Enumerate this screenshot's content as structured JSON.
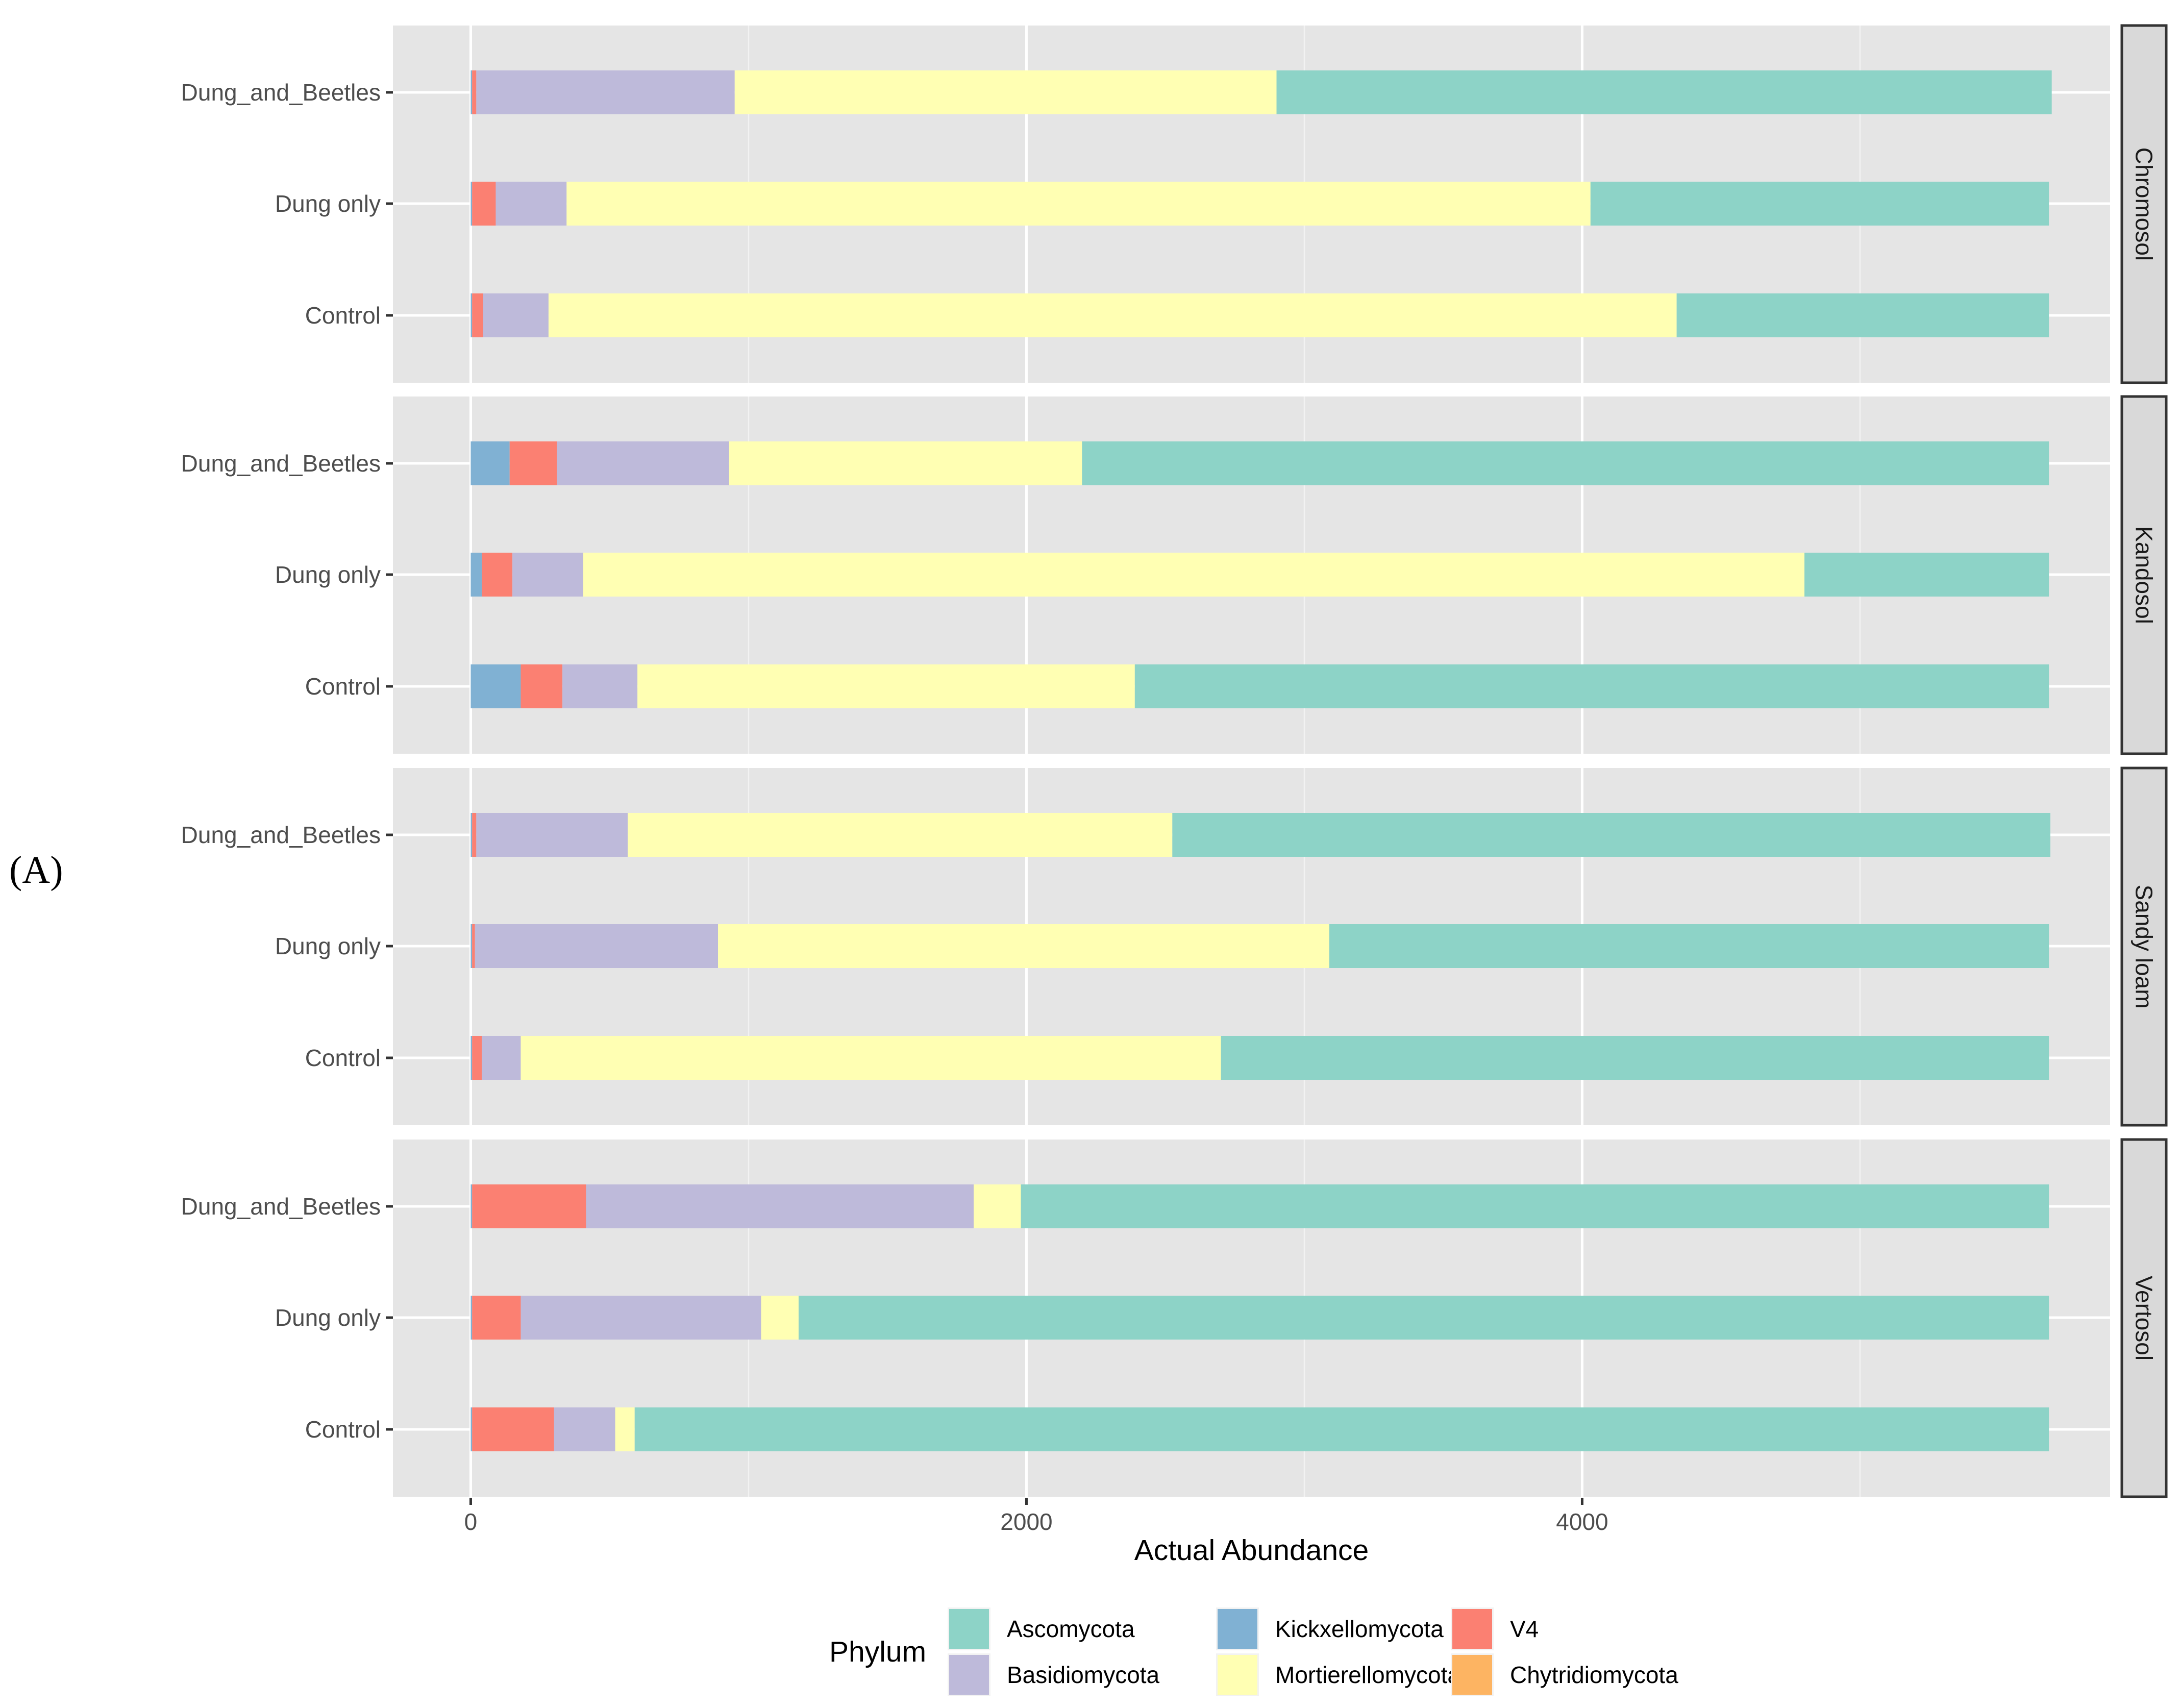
{
  "figure_label": "(A)",
  "chart_data": {
    "type": "bar",
    "orientation": "horizontal",
    "stacked": true,
    "xlabel": "Actual Abundance",
    "x_ticks": [
      0,
      2000,
      4000
    ],
    "xlim": [
      -280,
      5900
    ],
    "grid": true,
    "legend": {
      "title": "Phylum",
      "position": "bottom",
      "entries": [
        "Ascomycota",
        "Basidiomycota",
        "Kickxellomycota",
        "Mortierellomycota",
        "V4",
        "Chytridiomycota"
      ]
    },
    "colors": {
      "Ascomycota": "#8dd3c7",
      "Mortierellomycota": "#ffffb3",
      "Basidiomycota": "#bebada",
      "V4": "#fb8072",
      "Kickxellomycota": "#80b1d3",
      "Chytridiomycota": "#fdb462"
    },
    "stack_order": [
      "Chytridiomycota",
      "Kickxellomycota",
      "V4",
      "Basidiomycota",
      "Mortierellomycota",
      "Ascomycota"
    ],
    "facets": [
      {
        "name": "Chromosol",
        "rows": [
          {
            "label": "Dung_and_Beetles",
            "values": {
              "Chytridiomycota": 0,
              "Kickxellomycota": 5,
              "V4": 15,
              "Basidiomycota": 930,
              "Mortierellomycota": 1950,
              "Ascomycota": 2790
            }
          },
          {
            "label": "Dung only",
            "values": {
              "Chytridiomycota": 0,
              "Kickxellomycota": 5,
              "V4": 85,
              "Basidiomycota": 255,
              "Mortierellomycota": 3685,
              "Ascomycota": 1650
            }
          },
          {
            "label": "Control",
            "values": {
              "Chytridiomycota": 0,
              "Kickxellomycota": 5,
              "V4": 40,
              "Basidiomycota": 235,
              "Mortierellomycota": 4060,
              "Ascomycota": 1340
            }
          }
        ]
      },
      {
        "name": "Kandosol",
        "rows": [
          {
            "label": "Dung_and_Beetles",
            "values": {
              "Chytridiomycota": 0,
              "Kickxellomycota": 140,
              "V4": 170,
              "Basidiomycota": 620,
              "Mortierellomycota": 1270,
              "Ascomycota": 3480
            }
          },
          {
            "label": "Dung only",
            "values": {
              "Chytridiomycota": 0,
              "Kickxellomycota": 40,
              "V4": 110,
              "Basidiomycota": 255,
              "Mortierellomycota": 4395,
              "Ascomycota": 880
            }
          },
          {
            "label": "Control",
            "values": {
              "Chytridiomycota": 0,
              "Kickxellomycota": 180,
              "V4": 150,
              "Basidiomycota": 270,
              "Mortierellomycota": 1790,
              "Ascomycota": 3290
            }
          }
        ]
      },
      {
        "name": "Sandy loam",
        "rows": [
          {
            "label": "Dung_and_Beetles",
            "values": {
              "Chytridiomycota": 0,
              "Kickxellomycota": 5,
              "V4": 15,
              "Basidiomycota": 545,
              "Mortierellomycota": 1960,
              "Ascomycota": 3160
            }
          },
          {
            "label": "Dung only",
            "values": {
              "Chytridiomycota": 0,
              "Kickxellomycota": 5,
              "V4": 10,
              "Basidiomycota": 875,
              "Mortierellomycota": 2200,
              "Ascomycota": 2590
            }
          },
          {
            "label": "Control",
            "values": {
              "Chytridiomycota": 0,
              "Kickxellomycota": 5,
              "V4": 35,
              "Basidiomycota": 140,
              "Mortierellomycota": 2520,
              "Ascomycota": 2980
            }
          }
        ]
      },
      {
        "name": "Vertosol",
        "rows": [
          {
            "label": "Dung_and_Beetles",
            "values": {
              "Chytridiomycota": 0,
              "Kickxellomycota": 5,
              "V4": 410,
              "Basidiomycota": 1395,
              "Mortierellomycota": 170,
              "Ascomycota": 3700
            }
          },
          {
            "label": "Dung only",
            "values": {
              "Chytridiomycota": 0,
              "Kickxellomycota": 5,
              "V4": 175,
              "Basidiomycota": 865,
              "Mortierellomycota": 135,
              "Ascomycota": 4500
            }
          },
          {
            "label": "Control",
            "values": {
              "Chytridiomycota": 0,
              "Kickxellomycota": 5,
              "V4": 295,
              "Basidiomycota": 220,
              "Mortierellomycota": 70,
              "Ascomycota": 5090
            }
          }
        ]
      }
    ]
  }
}
